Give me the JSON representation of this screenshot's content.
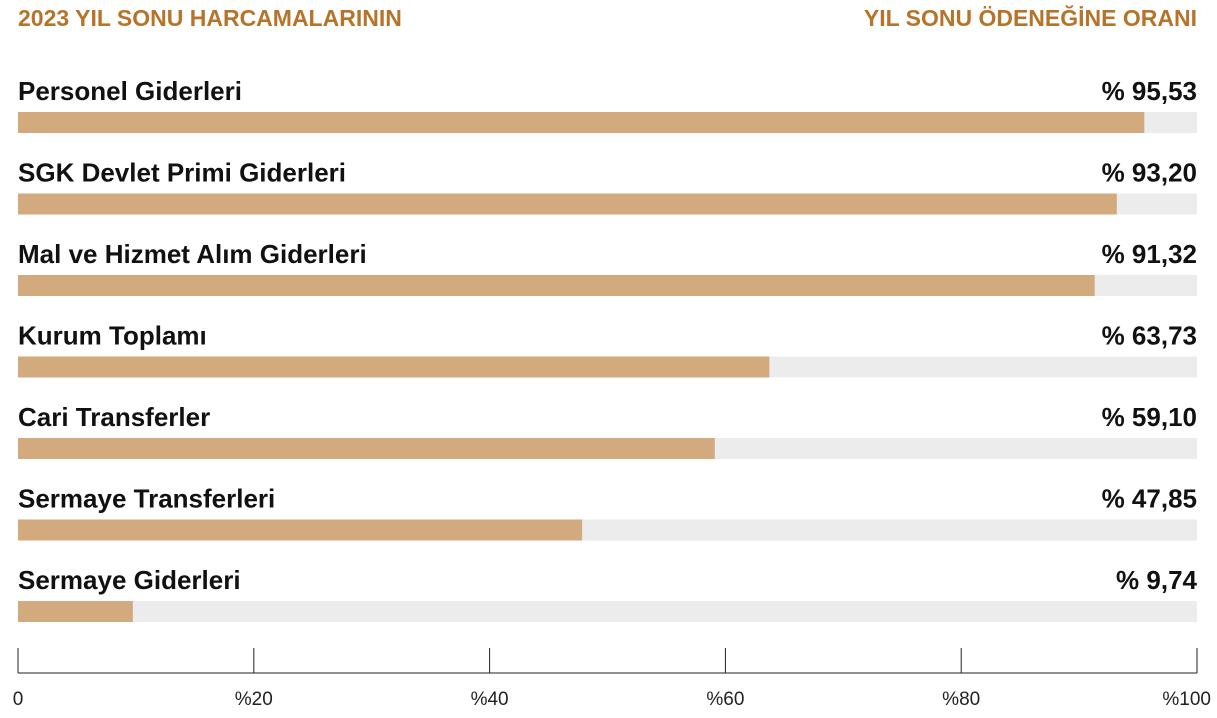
{
  "chart_data": {
    "type": "bar",
    "orientation": "horizontal",
    "title": "2023 YIL SONU HARCAMALARININ",
    "subtitle": "YIL SONU ÖDENEĞİNE ORANI",
    "categories": [
      "Personel Giderleri",
      "SGK Devlet Primi Giderleri",
      "Mal ve Hizmet Alım Giderleri",
      "Kurum Toplamı",
      "Cari Transferler",
      "Sermaye Transferleri",
      "Sermaye Giderleri"
    ],
    "values": [
      95.53,
      93.2,
      91.32,
      63.73,
      59.1,
      47.85,
      9.74
    ],
    "value_labels": [
      "% 95,53",
      "% 93,20",
      "% 91,32",
      "% 63,73",
      "% 59,10",
      "% 47,85",
      "% 9,74"
    ],
    "color": "#d2aa7e",
    "track_color": "#ececec",
    "xlim": [
      0,
      100
    ],
    "xticks": [
      0,
      {
        "value": 20,
        "label": "%20"
      },
      {
        "value": 40,
        "label": "%40"
      },
      {
        "value": 60,
        "label": "%60"
      },
      {
        "value": 80,
        "label": "%80"
      },
      {
        "value": 100,
        "label": "%100"
      }
    ]
  }
}
